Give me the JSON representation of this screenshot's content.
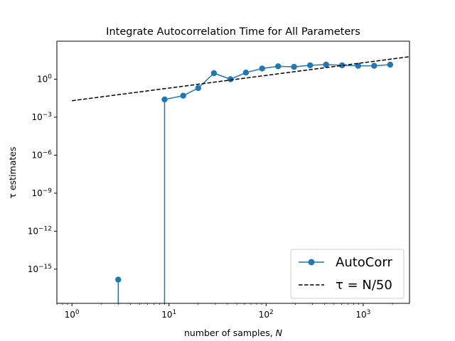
{
  "chart_data": {
    "type": "line",
    "title": "Integrate Autocorrelation Time for All Parameters",
    "xlabel": "number of samples, N",
    "ylabel": "τ estimates",
    "xscale": "log",
    "yscale": "log",
    "xlim": [
      0.7,
      3000
    ],
    "ylim": [
      2e-18,
      1000
    ],
    "x_ticks": [
      {
        "value": 1,
        "base": "10",
        "exp": "0"
      },
      {
        "value": 10,
        "base": "10",
        "exp": "1"
      },
      {
        "value": 100,
        "base": "10",
        "exp": "2"
      },
      {
        "value": 1000,
        "base": "10",
        "exp": "3"
      }
    ],
    "y_ticks": [
      {
        "value": 1e-15,
        "base": "10",
        "exp": "−15"
      },
      {
        "value": 1e-12,
        "base": "10",
        "exp": "−12"
      },
      {
        "value": 1e-09,
        "base": "10",
        "exp": "−9"
      },
      {
        "value": 1e-06,
        "base": "10",
        "exp": "−6"
      },
      {
        "value": 0.001,
        "base": "10",
        "exp": "−3"
      },
      {
        "value": 1,
        "base": "10",
        "exp": "0"
      }
    ],
    "series": [
      {
        "name": "AutoCorr",
        "color": "#1f77b4",
        "style": "line-with-markers",
        "x": [
          3,
          9,
          14,
          20,
          29,
          43,
          62,
          91,
          133,
          194,
          284,
          415,
          607,
          887,
          1297,
          1896
        ],
        "y": [
          1.5e-16,
          0.025,
          0.05,
          0.2,
          3.0,
          1.0,
          3.3,
          7.0,
          10.5,
          9.5,
          12.5,
          14.0,
          12.5,
          11.5,
          11.5,
          14.0
        ]
      },
      {
        "name": "τ = N/50",
        "color": "#000000",
        "style": "dashed",
        "x": [
          1,
          3000
        ],
        "y": [
          0.02,
          60
        ]
      }
    ],
    "legend_position": "bottom-right",
    "grid": false
  }
}
